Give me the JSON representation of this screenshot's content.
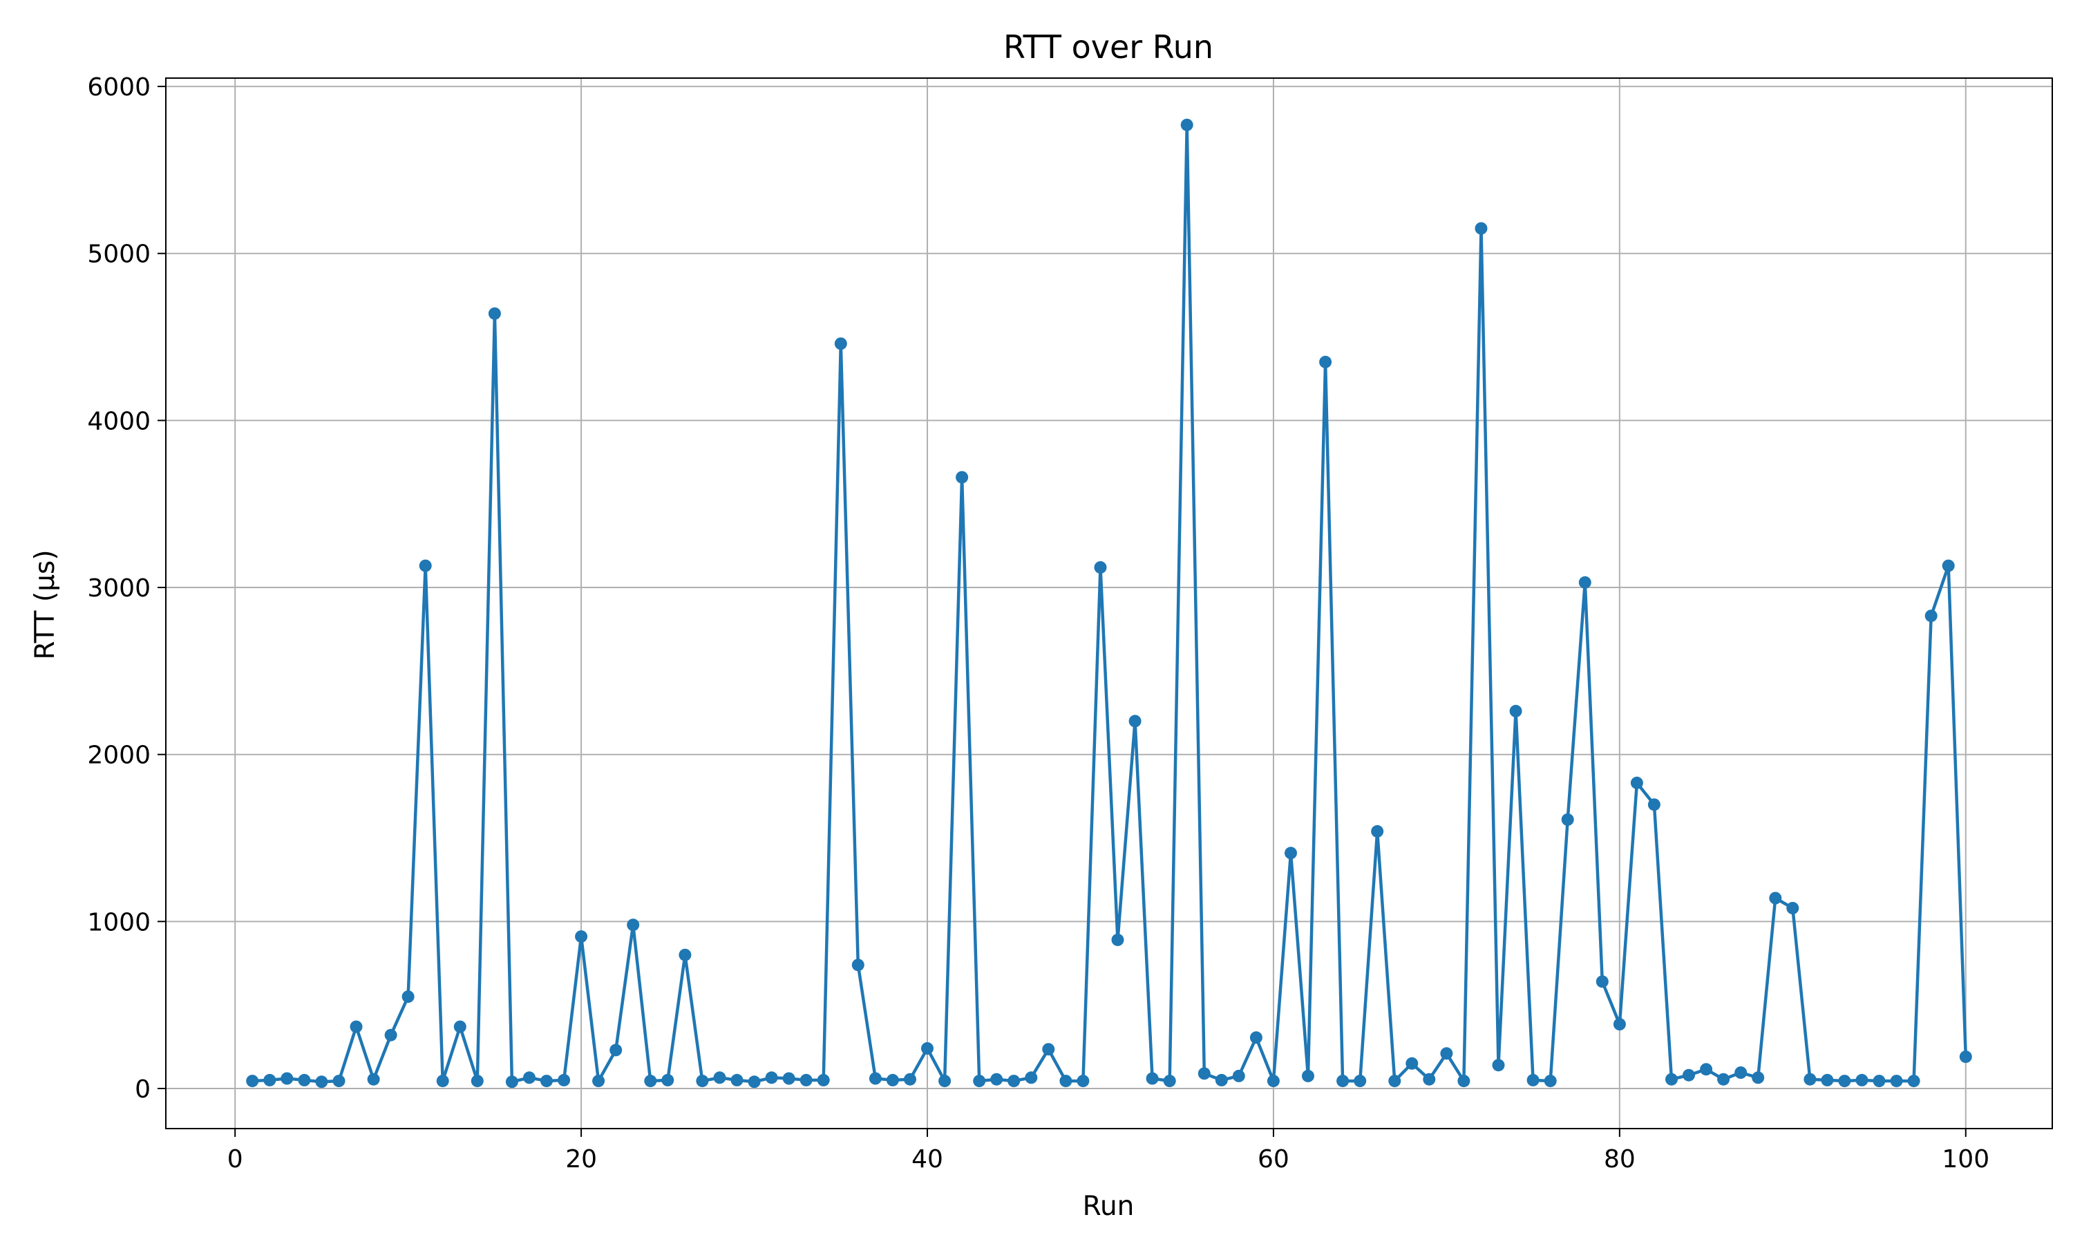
{
  "chart_data": {
    "type": "line",
    "title": "RTT over Run",
    "xlabel": "Run",
    "ylabel": "RTT (µs)",
    "xlim": [
      -4,
      105
    ],
    "ylim": [
      -240,
      6050
    ],
    "xticks": [
      0,
      20,
      40,
      60,
      80,
      100
    ],
    "yticks": [
      0,
      1000,
      2000,
      3000,
      4000,
      5000,
      6000
    ],
    "grid": true,
    "color": "#1f77b4",
    "marker": "circle",
    "series": [
      {
        "x": [
          1,
          2,
          3,
          4,
          5,
          6,
          7,
          8,
          9,
          10,
          11,
          12,
          13,
          14,
          15,
          16,
          17,
          18,
          19,
          20,
          21,
          22,
          23,
          24,
          25,
          26,
          27,
          28,
          29,
          30,
          31,
          32,
          33,
          34,
          35,
          36,
          37,
          38,
          39,
          40,
          41,
          42,
          43,
          44,
          45,
          46,
          47,
          48,
          49,
          50,
          51,
          52,
          53,
          54,
          55,
          56,
          57,
          58,
          59,
          60,
          61,
          62,
          63,
          64,
          65,
          66,
          67,
          68,
          69,
          70,
          71,
          72,
          73,
          74,
          75,
          76,
          77,
          78,
          79,
          80,
          81,
          82,
          83,
          84,
          85,
          86,
          87,
          88,
          89,
          90,
          91,
          92,
          93,
          94,
          95,
          96,
          97,
          98,
          99,
          100
        ],
        "y": [
          45,
          50,
          60,
          50,
          40,
          45,
          370,
          55,
          320,
          550,
          3130,
          45,
          370,
          45,
          4640,
          40,
          65,
          45,
          50,
          910,
          45,
          230,
          980,
          45,
          50,
          800,
          45,
          65,
          50,
          40,
          65,
          60,
          50,
          50,
          4460,
          740,
          60,
          50,
          55,
          240,
          45,
          3660,
          45,
          55,
          45,
          65,
          235,
          45,
          45,
          3120,
          890,
          2200,
          60,
          45,
          5770,
          90,
          50,
          75,
          305,
          45,
          1410,
          75,
          4350,
          45,
          45,
          1540,
          45,
          150,
          55,
          210,
          45,
          5150,
          140,
          2260,
          50,
          45,
          1610,
          3030,
          640,
          385,
          1830,
          1700,
          55,
          80,
          115,
          55,
          95,
          65,
          1140,
          1080,
          55,
          50,
          45,
          50,
          45,
          45,
          45,
          2830,
          3130,
          190
        ]
      }
    ]
  }
}
